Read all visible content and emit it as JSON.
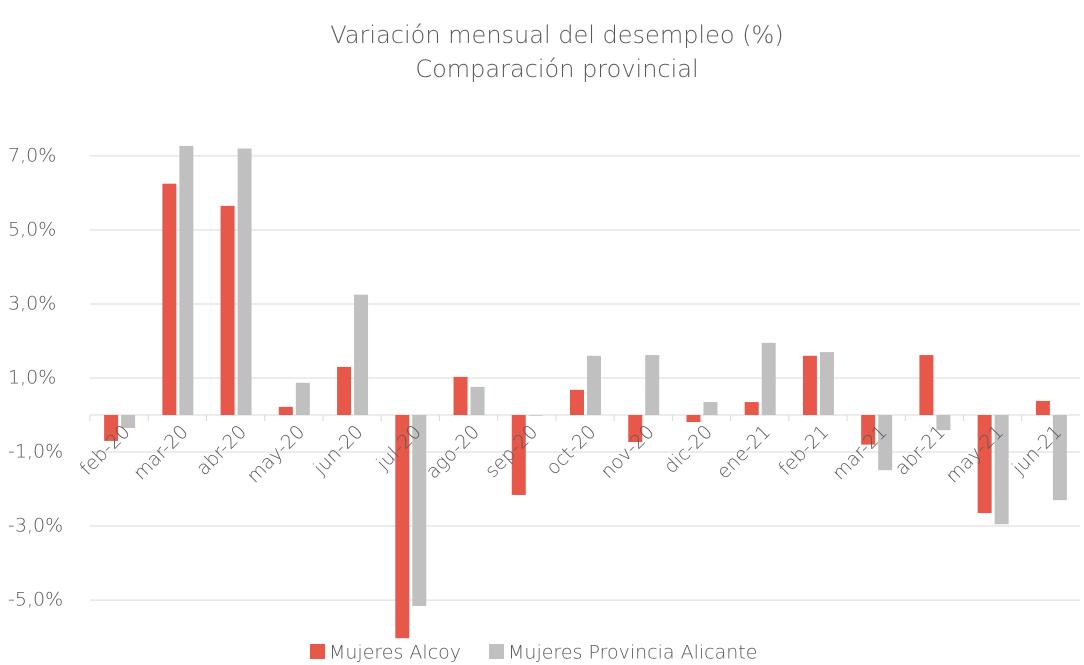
{
  "chart_data": {
    "type": "bar",
    "title": "Variación mensual del desempleo (%)",
    "subtitle": "Comparación provincial",
    "categories": [
      "feb-20",
      "mar-20",
      "abr-20",
      "may-20",
      "jun-20",
      "jul-20",
      "ago-20",
      "sep-20",
      "oct-20",
      "nov-20",
      "dic-20",
      "ene-21",
      "feb-21",
      "mar-21",
      "abr-21",
      "may-21",
      "jun-21"
    ],
    "series": [
      {
        "name": "Mujeres Alcoy",
        "color": "#e8584a",
        "values": [
          -0.7,
          6.25,
          5.65,
          0.22,
          1.3,
          -6.03,
          1.03,
          -2.16,
          0.68,
          -0.73,
          -0.19,
          0.35,
          1.6,
          -0.8,
          1.62,
          -2.65,
          0.38
        ]
      },
      {
        "name": "Mujeres Provincia Alicante",
        "color": "#c0c0c0",
        "values": [
          -0.35,
          7.27,
          7.2,
          0.87,
          3.25,
          -5.16,
          0.76,
          -0.02,
          1.6,
          1.62,
          0.35,
          1.95,
          1.7,
          -1.49,
          -0.41,
          -2.95,
          -2.3
        ]
      }
    ],
    "ylim": [
      -6.7,
      7.7
    ],
    "yticks": [
      {
        "value": 7,
        "label": "7,0%"
      },
      {
        "value": 5,
        "label": "5,0%"
      },
      {
        "value": 3,
        "label": "3,0%"
      },
      {
        "value": 1,
        "label": "1,0%"
      },
      {
        "value": -1,
        "label": "-1,0%"
      },
      {
        "value": -3,
        "label": "-3,0%"
      },
      {
        "value": -5,
        "label": "-5,0%"
      }
    ],
    "grid": true,
    "legend": "bottom"
  }
}
